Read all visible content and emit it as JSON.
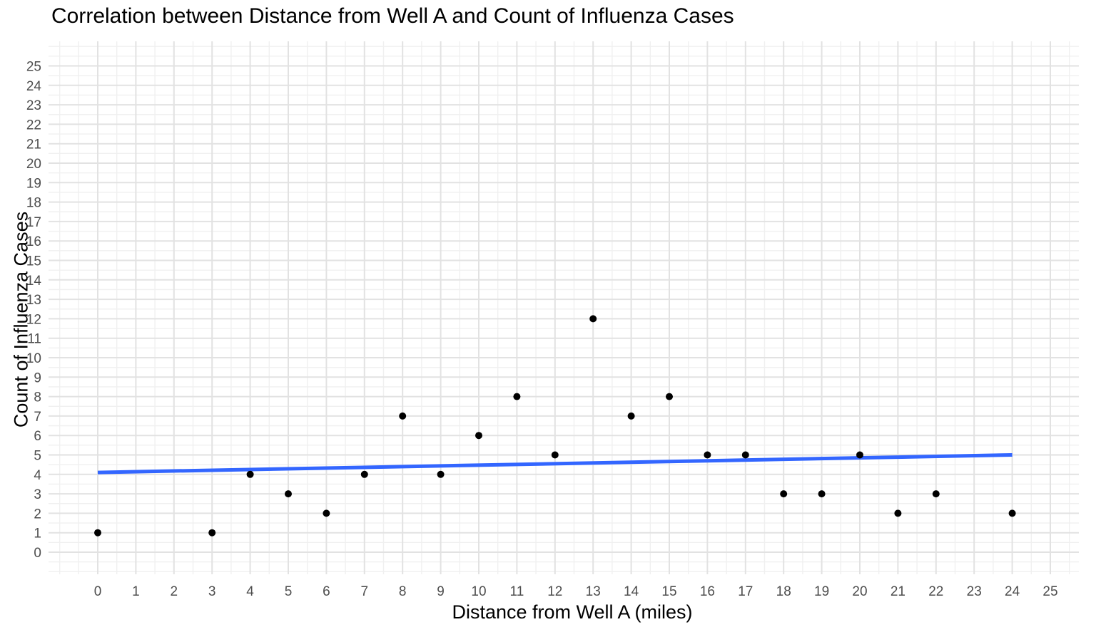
{
  "chart_data": {
    "type": "scatter",
    "title": "Correlation between Distance from Well A and Count of Influenza Cases",
    "xlabel": "Distance from Well A (miles)",
    "ylabel": "Count of Influenza Cases",
    "xlim": [
      0,
      25
    ],
    "ylim": [
      0,
      25
    ],
    "x_ticks": [
      0,
      1,
      2,
      3,
      4,
      5,
      6,
      7,
      8,
      9,
      10,
      11,
      12,
      13,
      14,
      15,
      16,
      17,
      18,
      19,
      20,
      21,
      22,
      23,
      24,
      25
    ],
    "y_ticks": [
      0,
      1,
      2,
      3,
      4,
      5,
      6,
      7,
      8,
      9,
      10,
      11,
      12,
      13,
      14,
      15,
      16,
      17,
      18,
      19,
      20,
      21,
      22,
      23,
      24,
      25
    ],
    "grid": "major and minor (0.5 steps), no panel border, no tick marks",
    "legend": "none",
    "points": [
      [
        0,
        1
      ],
      [
        3,
        1
      ],
      [
        4,
        4
      ],
      [
        5,
        3
      ],
      [
        6,
        2
      ],
      [
        7,
        4
      ],
      [
        8,
        7
      ],
      [
        9,
        4
      ],
      [
        10,
        6
      ],
      [
        11,
        8
      ],
      [
        12,
        5
      ],
      [
        13,
        12
      ],
      [
        14,
        7
      ],
      [
        15,
        8
      ],
      [
        16,
        5
      ],
      [
        17,
        5
      ],
      [
        18,
        3
      ],
      [
        19,
        3
      ],
      [
        20,
        5
      ],
      [
        21,
        2
      ],
      [
        22,
        3
      ],
      [
        24,
        2
      ]
    ],
    "trend_line": {
      "x_start": 0,
      "y_start": 4.1,
      "x_end": 24,
      "y_end": 5.0
    },
    "colors": {
      "point": "#000000",
      "trend": "#3366FF",
      "grid_major": "#E2E2E2",
      "grid_minor": "#F0F0F0",
      "tick_text": "#4D4D4D",
      "title_text": "#000000",
      "background": "#FFFFFF"
    }
  }
}
